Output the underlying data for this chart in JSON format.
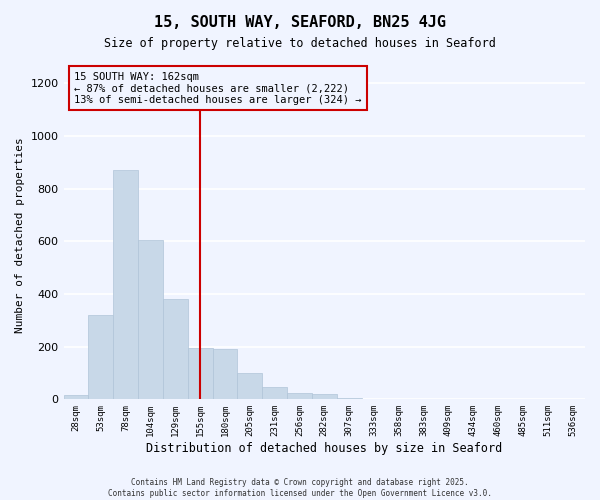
{
  "title": "15, SOUTH WAY, SEAFORD, BN25 4JG",
  "subtitle": "Size of property relative to detached houses in Seaford",
  "xlabel": "Distribution of detached houses by size in Seaford",
  "ylabel": "Number of detached properties",
  "bar_labels": [
    "28sqm",
    "53sqm",
    "78sqm",
    "104sqm",
    "129sqm",
    "155sqm",
    "180sqm",
    "205sqm",
    "231sqm",
    "256sqm",
    "282sqm",
    "307sqm",
    "333sqm",
    "358sqm",
    "383sqm",
    "409sqm",
    "434sqm",
    "460sqm",
    "485sqm",
    "511sqm",
    "536sqm"
  ],
  "bar_heights": [
    15,
    320,
    870,
    605,
    380,
    195,
    190,
    100,
    45,
    25,
    20,
    5,
    0,
    0,
    0,
    0,
    0,
    0,
    0,
    0,
    0
  ],
  "bar_color": "#c8d8e8",
  "bar_edge_color": "#b0c4d8",
  "vline_x": 5.5,
  "vline_color": "#cc0000",
  "annotation_text": "15 SOUTH WAY: 162sqm\n← 87% of detached houses are smaller (2,222)\n13% of semi-detached houses are larger (324) →",
  "annotation_box_color": "#cc0000",
  "annotation_text_color": "#000000",
  "ylim": [
    0,
    1250
  ],
  "yticks": [
    0,
    200,
    400,
    600,
    800,
    1000,
    1200
  ],
  "background_color": "#f0f4ff",
  "grid_color": "#ffffff",
  "footer_line1": "Contains HM Land Registry data © Crown copyright and database right 2025.",
  "footer_line2": "Contains public sector information licensed under the Open Government Licence v3.0."
}
